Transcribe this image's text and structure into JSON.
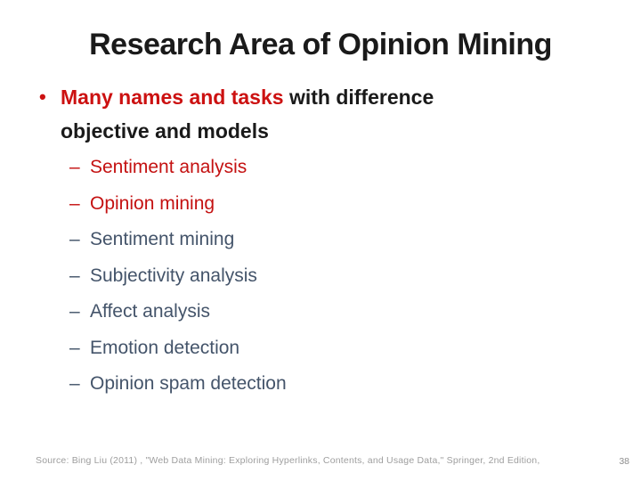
{
  "slide": {
    "title": "Research Area of Opinion Mining",
    "bullet": {
      "marker": "•",
      "lead_red": "Many names and tasks",
      "lead_rest": " with difference objective and models"
    },
    "sub_bullets": [
      {
        "dash": "–",
        "label": "Sentiment analysis",
        "color": "#C41111"
      },
      {
        "dash": "–",
        "label": "Opinion mining",
        "color": "#C41111"
      },
      {
        "dash": "–",
        "label": "Sentiment mining",
        "color": "#44546A"
      },
      {
        "dash": "–",
        "label": "Subjectivity analysis",
        "color": "#44546A"
      },
      {
        "dash": "–",
        "label": "Affect analysis",
        "color": "#44546A"
      },
      {
        "dash": "–",
        "label": "Emotion detection",
        "color": "#44546A"
      },
      {
        "dash": "–",
        "label": "Opinion spam detection",
        "color": "#44546A"
      }
    ],
    "footer": {
      "source": "Source: Bing Liu (2011) , \"Web Data Mining: Exploring Hyperlinks, Contents, and Usage Data,\" Springer, 2nd Edition,",
      "page_number": "38"
    },
    "colors": {
      "title": "#1A1A1A",
      "bullet_red": "#CC1111",
      "body_black": "#1A1A1A",
      "slate": "#44546A",
      "footer_gray": "#9E9E9E"
    }
  }
}
